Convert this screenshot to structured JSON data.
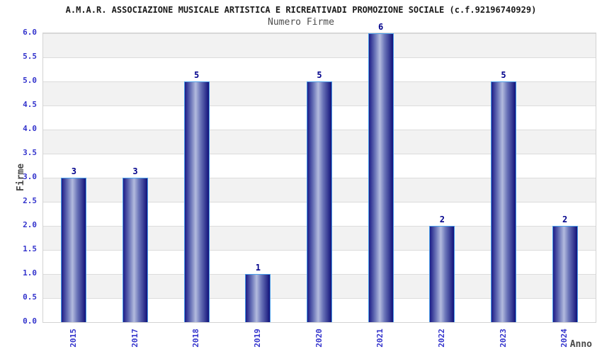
{
  "chart_data": {
    "type": "bar",
    "title": "A.M.A.R. ASSOCIAZIONE MUSICALE ARTISTICA E RICREATIVADI PROMOZIONE SOCIALE (c.f.92196740929)",
    "subtitle": "Numero Firme",
    "categories": [
      "2015",
      "2017",
      "2018",
      "2019",
      "2020",
      "2021",
      "2022",
      "2023",
      "2024"
    ],
    "values": [
      3,
      3,
      5,
      1,
      5,
      6,
      2,
      5,
      2
    ],
    "xlabel": "Anno",
    "ylabel": "Firme",
    "ylim": [
      0,
      6
    ],
    "ytick_step": 0.5,
    "ytick_labels": [
      "0.0",
      "0.5",
      "1.0",
      "1.5",
      "2.0",
      "2.5",
      "3.0",
      "3.5",
      "4.0",
      "4.5",
      "5.0",
      "5.5",
      "6.0"
    ],
    "grid": "horizontal-bands-alternating",
    "legend": "none",
    "colors": {
      "tick_label": "#3333cc",
      "value_label": "#00008b",
      "bar_border": "#4a9de8",
      "bar_dark": "#1c1c87",
      "bar_mid": "#6a74b8",
      "bar_light": "#b3bbde",
      "bar_dark_right": "#12127a",
      "band_gray": "#f2f2f2",
      "band_white": "#ffffff",
      "gridline": "#dcdcdc",
      "plot_border": "#d3d3d3"
    }
  }
}
